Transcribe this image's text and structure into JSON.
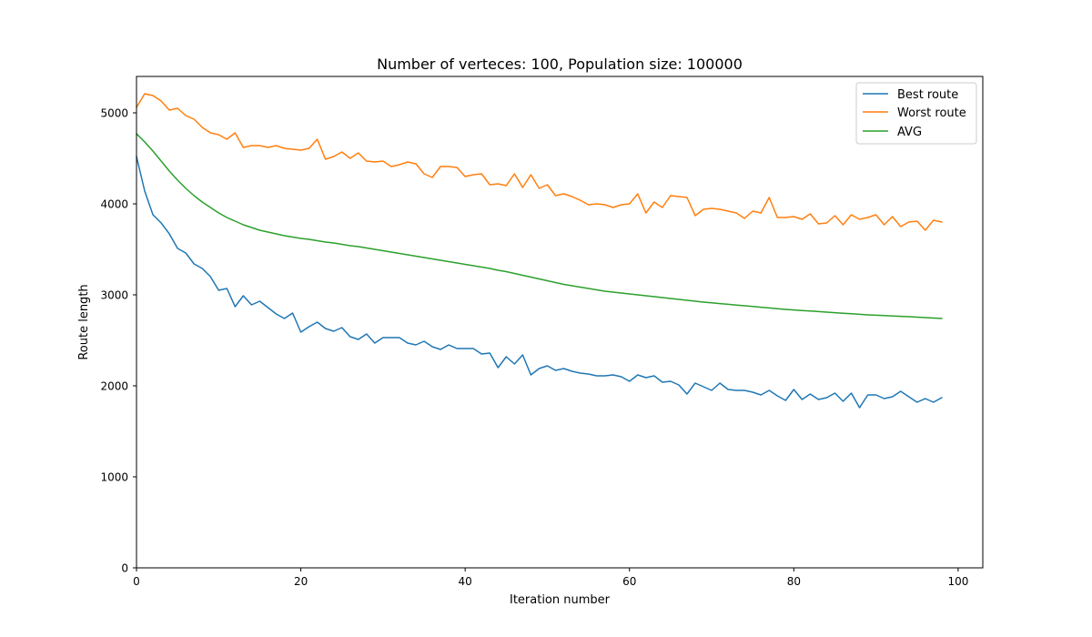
{
  "chart_data": {
    "type": "line",
    "title": "Number of verteces: 100, Population size: 100000",
    "xlabel": "Iteration number",
    "ylabel": "Route length",
    "xlim": [
      0,
      103
    ],
    "ylim": [
      0,
      5400
    ],
    "xticks": [
      0,
      20,
      40,
      60,
      80,
      100
    ],
    "yticks": [
      0,
      1000,
      2000,
      3000,
      4000,
      5000
    ],
    "legend_position": "top-right",
    "grid": false,
    "series": [
      {
        "name": "Best route",
        "color": "#1f77b4",
        "values": [
          4520,
          4140,
          3880,
          3790,
          3670,
          3510,
          3460,
          3340,
          3290,
          3200,
          3050,
          3070,
          2870,
          2990,
          2890,
          2930,
          2860,
          2790,
          2740,
          2800,
          2590,
          2650,
          2700,
          2630,
          2600,
          2640,
          2540,
          2510,
          2570,
          2470,
          2530,
          2530,
          2530,
          2470,
          2450,
          2490,
          2430,
          2400,
          2450,
          2410,
          2410,
          2410,
          2350,
          2360,
          2200,
          2320,
          2240,
          2340,
          2120,
          2190,
          2220,
          2170,
          2190,
          2160,
          2140,
          2130,
          2110,
          2110,
          2120,
          2100,
          2050,
          2120,
          2090,
          2110,
          2040,
          2050,
          2010,
          1910,
          2030,
          1990,
          1950,
          2030,
          1960,
          1950,
          1950,
          1930,
          1900,
          1950,
          1890,
          1840,
          1960,
          1850,
          1910,
          1850,
          1870,
          1920,
          1830,
          1920,
          1760,
          1900,
          1900,
          1860,
          1880,
          1940,
          1880,
          1820,
          1860,
          1820,
          1870
        ]
      },
      {
        "name": "Worst route",
        "color": "#ff7f0e",
        "values": [
          5060,
          5210,
          5190,
          5130,
          5030,
          5050,
          4970,
          4930,
          4840,
          4780,
          4760,
          4710,
          4780,
          4620,
          4640,
          4640,
          4620,
          4640,
          4610,
          4600,
          4590,
          4610,
          4710,
          4490,
          4520,
          4570,
          4500,
          4560,
          4470,
          4460,
          4470,
          4410,
          4430,
          4460,
          4440,
          4330,
          4290,
          4410,
          4410,
          4400,
          4300,
          4320,
          4330,
          4210,
          4220,
          4200,
          4330,
          4180,
          4320,
          4170,
          4210,
          4090,
          4110,
          4080,
          4040,
          3990,
          4000,
          3990,
          3960,
          3990,
          4000,
          4110,
          3900,
          4020,
          3960,
          4090,
          4080,
          4070,
          3870,
          3940,
          3950,
          3940,
          3920,
          3900,
          3840,
          3920,
          3900,
          4070,
          3850,
          3850,
          3860,
          3830,
          3890,
          3780,
          3790,
          3870,
          3770,
          3880,
          3830,
          3850,
          3880,
          3770,
          3860,
          3750,
          3800,
          3810,
          3710,
          3820,
          3800
        ]
      },
      {
        "name": "AVG",
        "color": "#2ca02c",
        "values": [
          4770,
          4680,
          4580,
          4470,
          4360,
          4260,
          4170,
          4090,
          4020,
          3960,
          3900,
          3850,
          3810,
          3770,
          3740,
          3710,
          3690,
          3670,
          3650,
          3635,
          3620,
          3610,
          3595,
          3580,
          3570,
          3555,
          3540,
          3530,
          3515,
          3500,
          3485,
          3470,
          3455,
          3440,
          3425,
          3410,
          3395,
          3380,
          3365,
          3350,
          3335,
          3320,
          3305,
          3290,
          3270,
          3255,
          3235,
          3215,
          3195,
          3175,
          3155,
          3135,
          3115,
          3100,
          3085,
          3070,
          3055,
          3040,
          3030,
          3020,
          3010,
          3000,
          2990,
          2980,
          2970,
          2960,
          2950,
          2940,
          2930,
          2920,
          2912,
          2904,
          2896,
          2888,
          2880,
          2872,
          2864,
          2856,
          2848,
          2840,
          2834,
          2828,
          2822,
          2816,
          2810,
          2804,
          2798,
          2792,
          2786,
          2780,
          2776,
          2772,
          2768,
          2764,
          2760,
          2755,
          2750,
          2745,
          2740
        ]
      }
    ]
  }
}
